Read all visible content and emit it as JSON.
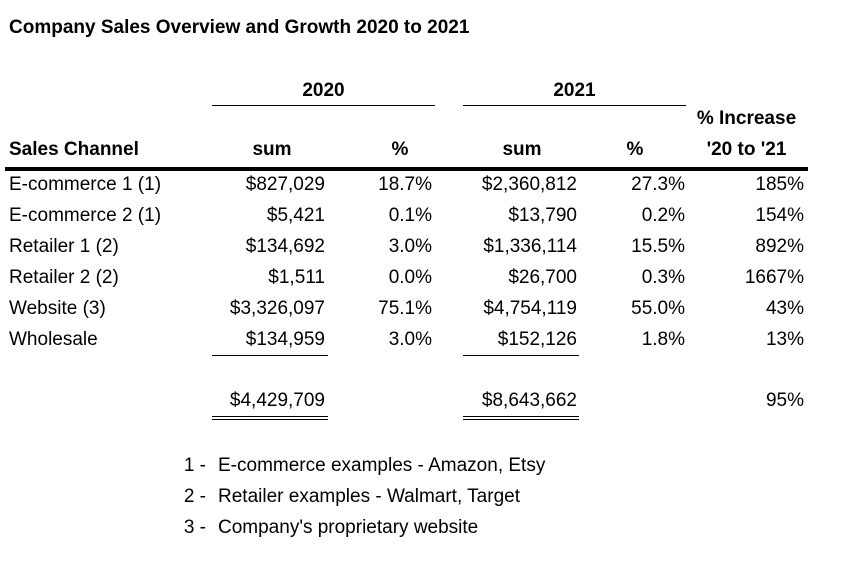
{
  "title": "Company Sales Overview and Growth 2020 to 2021",
  "header": {
    "year1": "2020",
    "year2": "2021",
    "channel_col": "Sales Channel",
    "sum_col": "sum",
    "pct_col": "%",
    "increase_line1": "% Increase",
    "increase_line2": "'20 to '21"
  },
  "rows": [
    {
      "channel": "E-commerce 1 (1)",
      "sum2020": "$827,029",
      "pct2020": "18.7%",
      "sum2021": "$2,360,812",
      "pct2021": "27.3%",
      "increase": "185%"
    },
    {
      "channel": "E-commerce 2 (1)",
      "sum2020": "$5,421",
      "pct2020": "0.1%",
      "sum2021": "$13,790",
      "pct2021": "0.2%",
      "increase": "154%"
    },
    {
      "channel": "Retailer 1 (2)",
      "sum2020": "$134,692",
      "pct2020": "3.0%",
      "sum2021": "$1,336,114",
      "pct2021": "15.5%",
      "increase": "892%"
    },
    {
      "channel": "Retailer 2 (2)",
      "sum2020": "$1,511",
      "pct2020": "0.0%",
      "sum2021": "$26,700",
      "pct2021": "0.3%",
      "increase": "1667%"
    },
    {
      "channel": "Website (3)",
      "sum2020": "$3,326,097",
      "pct2020": "75.1%",
      "sum2021": "$4,754,119",
      "pct2021": "55.0%",
      "increase": "43%"
    },
    {
      "channel": "Wholesale",
      "sum2020": "$134,959",
      "pct2020": "3.0%",
      "sum2021": "$152,126",
      "pct2021": "1.8%",
      "increase": "13%"
    }
  ],
  "totals": {
    "sum2020": "$4,429,709",
    "sum2021": "$8,643,662",
    "increase": "95%"
  },
  "notes": [
    {
      "num": "1 -",
      "text": "E-commerce examples - Amazon, Etsy"
    },
    {
      "num": "2 -",
      "text": "Retailer examples - Walmart, Target"
    },
    {
      "num": "3 -",
      "text": "Company's proprietary website"
    }
  ]
}
